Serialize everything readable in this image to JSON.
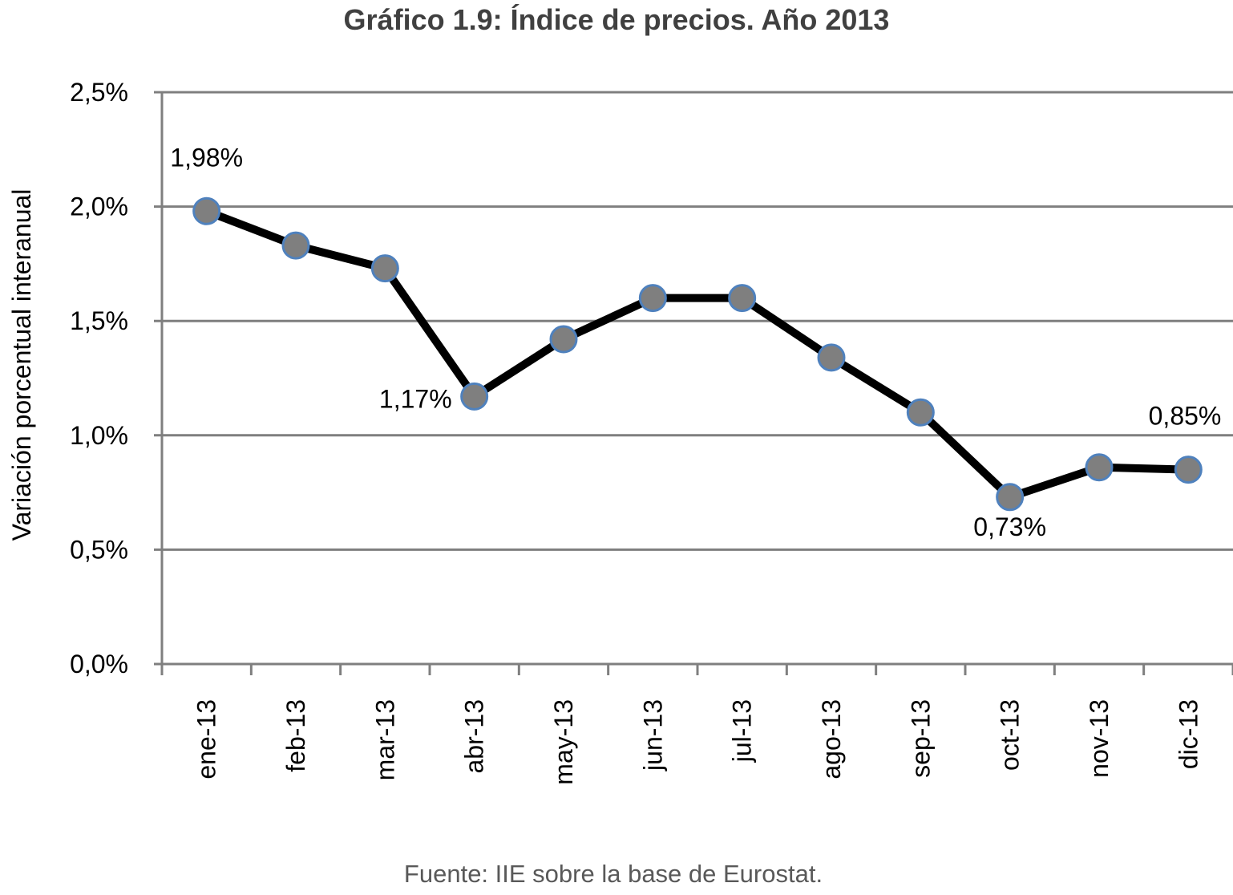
{
  "colors": {
    "line": "#000000",
    "marker_fill": "#7f7f7f",
    "marker_stroke": "#4f81bd",
    "grid": "#7f7f7f",
    "title": "#404040",
    "source": "#595959"
  },
  "chart_data": {
    "type": "line",
    "title": "Gráfico 1.9: Índice de precios. Año 2013",
    "xlabel": "",
    "ylabel": "Variación porcentual interanual",
    "categories": [
      "ene-13",
      "feb-13",
      "mar-13",
      "abr-13",
      "may-13",
      "jun-13",
      "jul-13",
      "ago-13",
      "sep-13",
      "oct-13",
      "nov-13",
      "dic-13"
    ],
    "series": [
      {
        "values": [
          1.98,
          1.83,
          1.73,
          1.17,
          1.42,
          1.6,
          1.6,
          1.34,
          1.1,
          0.73,
          0.86,
          0.85
        ]
      }
    ],
    "data_labels": [
      {
        "index": 0,
        "text": "1,98%",
        "placement": "above"
      },
      {
        "index": 3,
        "text": "1,17%",
        "placement": "left"
      },
      {
        "index": 9,
        "text": "0,73%",
        "placement": "below"
      },
      {
        "index": 11,
        "text": "0,85%",
        "placement": "above"
      }
    ],
    "ylim": [
      0,
      2.5
    ],
    "y_ticks": [
      0,
      0.5,
      1.0,
      1.5,
      2.0,
      2.5
    ],
    "y_tick_labels": [
      "0,0%",
      "0,5%",
      "1,0%",
      "1,5%",
      "2,0%",
      "2,5%"
    ],
    "grid": true,
    "legend": "none"
  },
  "source_note": "Fuente: IIE sobre la base de Eurostat."
}
